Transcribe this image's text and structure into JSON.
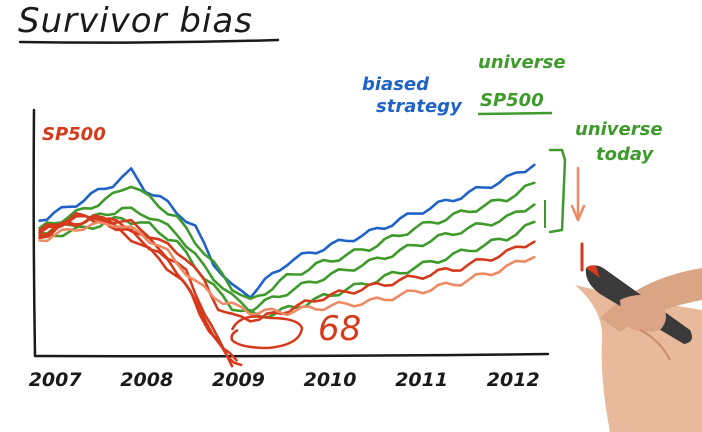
{
  "title": "Survivor bias",
  "chart_data": {
    "type": "line",
    "xlabel": "",
    "ylabel": "",
    "x_ticks": [
      "2007",
      "2008",
      "2009",
      "2010",
      "2011",
      "2012"
    ],
    "xlim": [
      2006.85,
      2012.45
    ],
    "ylim": [
      0,
      100
    ],
    "grid": false,
    "series": [
      {
        "name": "biased strategy",
        "color": "#1f63c9",
        "points": [
          [
            2006.9,
            55
          ],
          [
            2007.3,
            62
          ],
          [
            2007.7,
            70
          ],
          [
            2007.9,
            75
          ],
          [
            2008.05,
            68
          ],
          [
            2008.3,
            62
          ],
          [
            2008.6,
            52
          ],
          [
            2008.8,
            38
          ],
          [
            2009.0,
            28
          ],
          [
            2009.2,
            25
          ],
          [
            2009.6,
            38
          ],
          [
            2010.0,
            44
          ],
          [
            2010.5,
            50
          ],
          [
            2011.0,
            58
          ],
          [
            2011.5,
            65
          ],
          [
            2012.0,
            72
          ],
          [
            2012.3,
            78
          ]
        ]
      },
      {
        "name": "universe SP500",
        "color": "#3f9a2c",
        "points": [
          [
            2006.9,
            52
          ],
          [
            2007.3,
            58
          ],
          [
            2007.7,
            65
          ],
          [
            2007.9,
            70
          ],
          [
            2008.1,
            64
          ],
          [
            2008.4,
            56
          ],
          [
            2008.7,
            42
          ],
          [
            2009.0,
            28
          ],
          [
            2009.2,
            22
          ],
          [
            2009.6,
            32
          ],
          [
            2010.0,
            38
          ],
          [
            2010.5,
            44
          ],
          [
            2011.0,
            52
          ],
          [
            2011.5,
            58
          ],
          [
            2012.0,
            64
          ],
          [
            2012.3,
            70
          ]
        ]
      },
      {
        "name": "",
        "color": "#3f9a2c",
        "points": [
          [
            2006.9,
            50
          ],
          [
            2007.4,
            55
          ],
          [
            2007.8,
            60
          ],
          [
            2008.1,
            57
          ],
          [
            2008.4,
            50
          ],
          [
            2008.7,
            36
          ],
          [
            2009.0,
            24
          ],
          [
            2009.2,
            19
          ],
          [
            2009.6,
            26
          ],
          [
            2010.0,
            32
          ],
          [
            2010.5,
            38
          ],
          [
            2011.0,
            45
          ],
          [
            2011.5,
            51
          ],
          [
            2012.0,
            56
          ],
          [
            2012.3,
            62
          ]
        ]
      },
      {
        "name": "",
        "color": "#3f9a2c",
        "points": [
          [
            2006.9,
            48
          ],
          [
            2007.4,
            52
          ],
          [
            2007.8,
            56
          ],
          [
            2008.1,
            53
          ],
          [
            2008.4,
            46
          ],
          [
            2008.7,
            32
          ],
          [
            2009.0,
            20
          ],
          [
            2009.3,
            16
          ],
          [
            2009.7,
            20
          ],
          [
            2010.0,
            24
          ],
          [
            2010.5,
            30
          ],
          [
            2011.0,
            36
          ],
          [
            2011.5,
            42
          ],
          [
            2012.0,
            48
          ],
          [
            2012.3,
            54
          ]
        ]
      },
      {
        "name": "",
        "color": "#d63a1c",
        "points": [
          [
            2006.9,
            49
          ],
          [
            2007.2,
            54
          ],
          [
            2007.6,
            56
          ],
          [
            2007.9,
            54
          ],
          [
            2008.2,
            47
          ],
          [
            2008.5,
            40
          ],
          [
            2008.7,
            30
          ],
          [
            2008.85,
            20
          ],
          [
            2009.0,
            16
          ],
          [
            2009.3,
            15
          ],
          [
            2009.7,
            20
          ],
          [
            2010.0,
            24
          ],
          [
            2010.5,
            28
          ],
          [
            2011.0,
            32
          ],
          [
            2011.5,
            36
          ],
          [
            2012.0,
            42
          ],
          [
            2012.3,
            47
          ]
        ]
      },
      {
        "name": "",
        "color": "#d63a1c",
        "points": [
          [
            2006.9,
            50
          ],
          [
            2007.2,
            55
          ],
          [
            2007.5,
            57
          ],
          [
            2007.9,
            52
          ],
          [
            2008.2,
            44
          ],
          [
            2008.5,
            34
          ],
          [
            2008.7,
            18
          ],
          [
            2008.85,
            6
          ],
          [
            2009.0,
            -3
          ]
        ]
      },
      {
        "name": "",
        "color": "#d63a1c",
        "points": [
          [
            2006.9,
            48
          ],
          [
            2007.2,
            53
          ],
          [
            2007.5,
            56
          ],
          [
            2007.9,
            50
          ],
          [
            2008.2,
            42
          ],
          [
            2008.5,
            30
          ],
          [
            2008.7,
            14
          ],
          [
            2008.9,
            4
          ],
          [
            2009.05,
            -3
          ]
        ]
      },
      {
        "name": "",
        "color": "#d63a1c",
        "points": [
          [
            2006.9,
            51
          ],
          [
            2007.3,
            57
          ],
          [
            2007.6,
            55
          ],
          [
            2007.9,
            48
          ],
          [
            2008.2,
            40
          ],
          [
            2008.55,
            26
          ],
          [
            2008.75,
            10
          ],
          [
            2008.95,
            0
          ],
          [
            2009.1,
            -3
          ]
        ]
      },
      {
        "name": "",
        "color": "#ee8a63",
        "points": [
          [
            2006.9,
            47
          ],
          [
            2007.3,
            52
          ],
          [
            2007.7,
            54
          ],
          [
            2008.0,
            50
          ],
          [
            2008.3,
            42
          ],
          [
            2008.6,
            30
          ],
          [
            2008.9,
            22
          ],
          [
            2009.2,
            18
          ],
          [
            2009.6,
            18
          ],
          [
            2010.0,
            20
          ],
          [
            2010.5,
            22
          ],
          [
            2011.0,
            26
          ],
          [
            2011.5,
            30
          ],
          [
            2012.0,
            36
          ],
          [
            2012.3,
            41
          ]
        ]
      }
    ],
    "annotations": {
      "sp500_label": "SP500",
      "biased_label_line1": "biased",
      "biased_label_line2": "strategy",
      "universe_label": "universe",
      "sp500_universe_label": "SP500",
      "universe_today_line1": "universe",
      "universe_today_line2": "today",
      "count_label": "68"
    }
  }
}
